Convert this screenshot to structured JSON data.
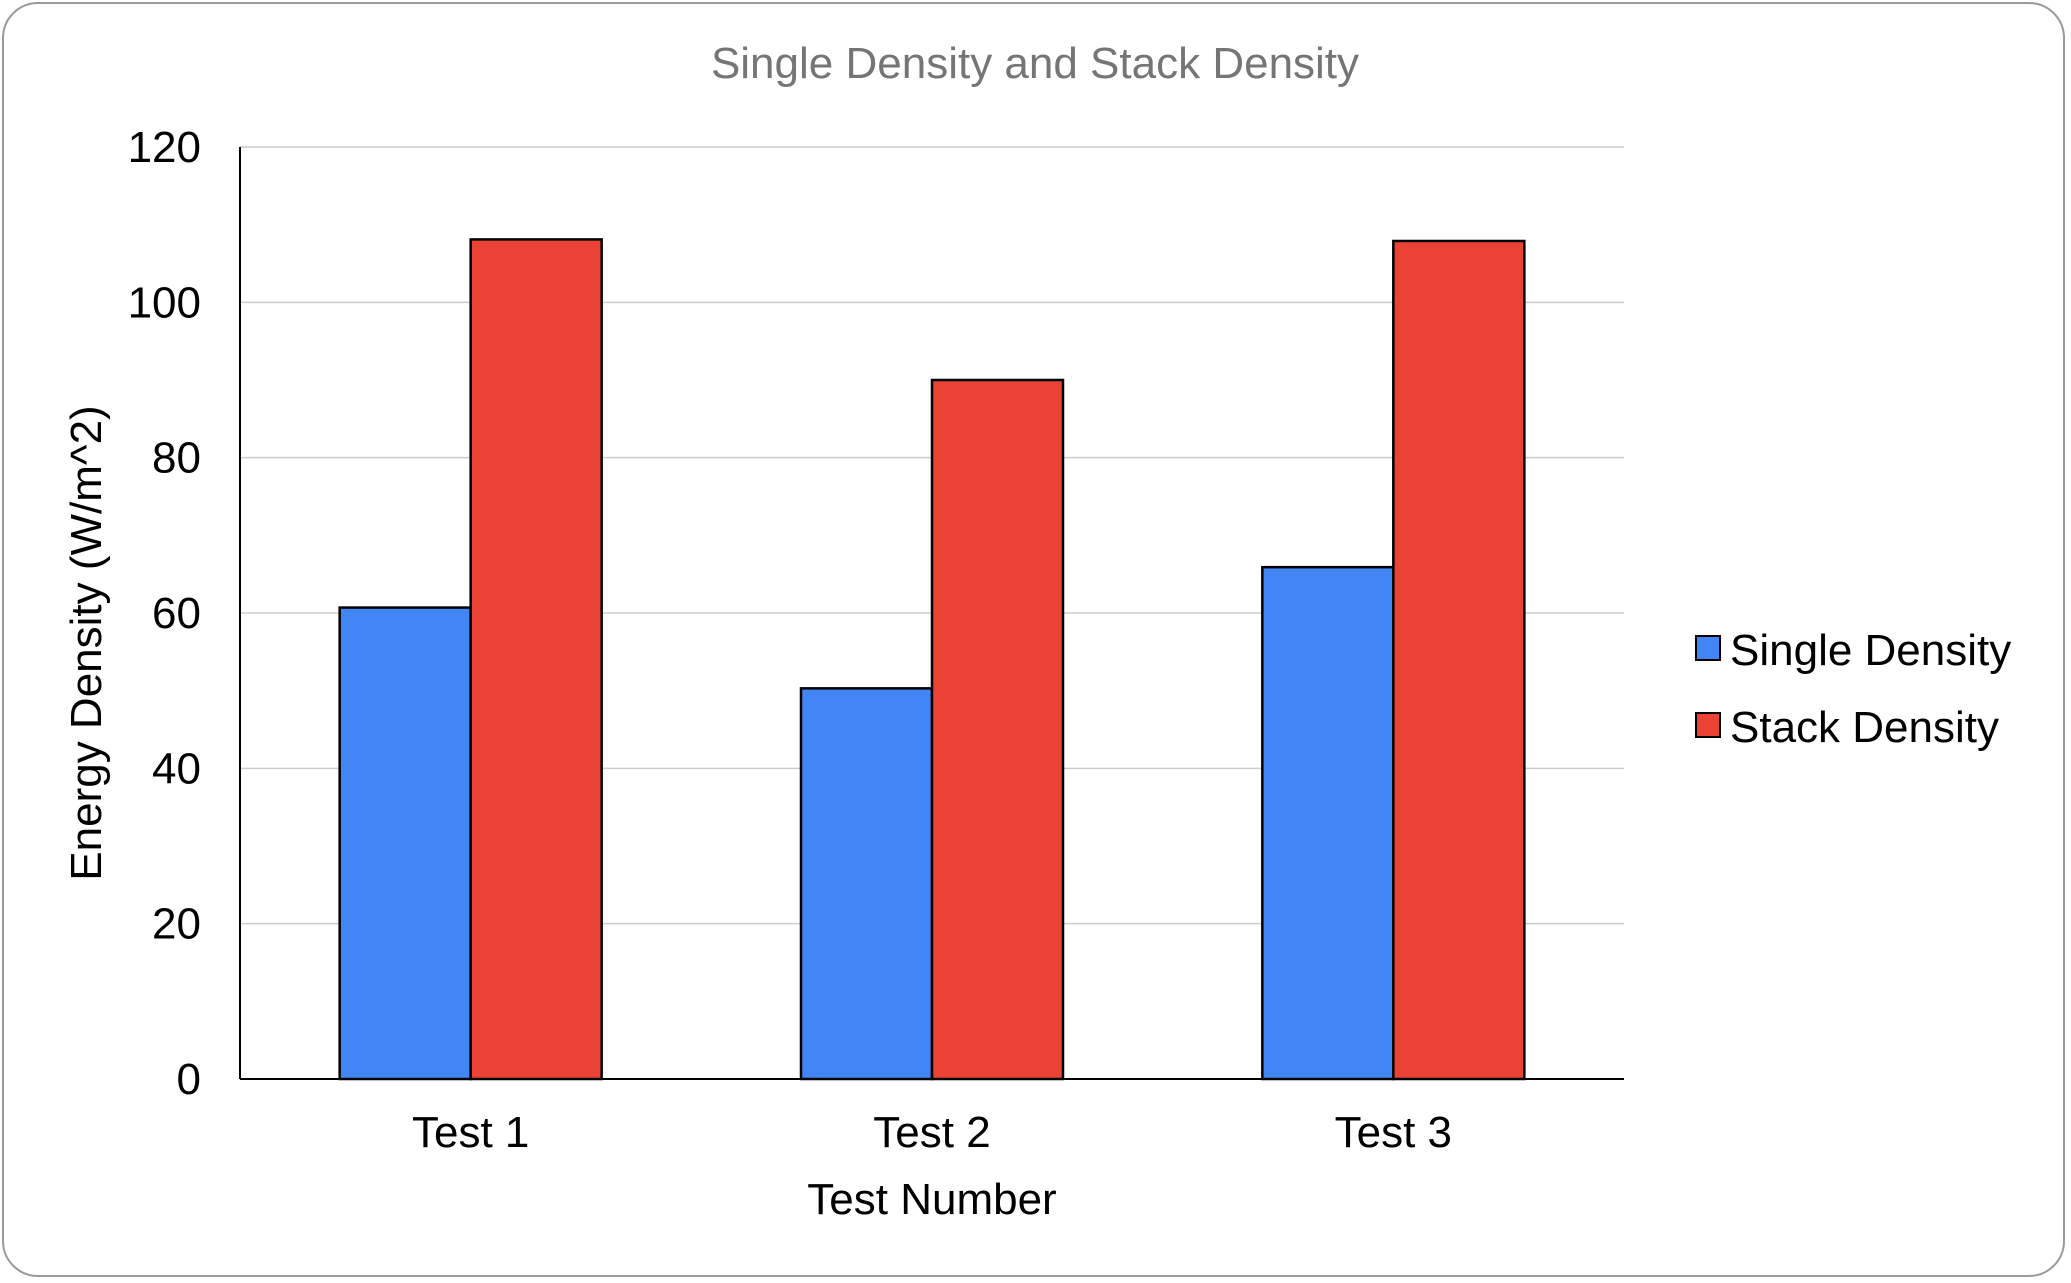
{
  "chart_data": {
    "type": "bar",
    "title": "Single Density and Stack Density",
    "xlabel": "Test Number",
    "ylabel": "Energy Density (W/m^2)",
    "categories": [
      "Test 1",
      "Test 2",
      "Test 3"
    ],
    "series": [
      {
        "name": "Single Density",
        "values": [
          60.7,
          50.3,
          65.9
        ],
        "color": "#4285f4"
      },
      {
        "name": "Stack Density",
        "values": [
          108.1,
          90.0,
          107.9
        ],
        "color": "#ea4335"
      }
    ],
    "ylim": [
      0,
      120
    ],
    "yticks": [
      "0",
      "20",
      "40",
      "60",
      "80",
      "100",
      "120"
    ],
    "grid": true,
    "legend_position": "right"
  }
}
